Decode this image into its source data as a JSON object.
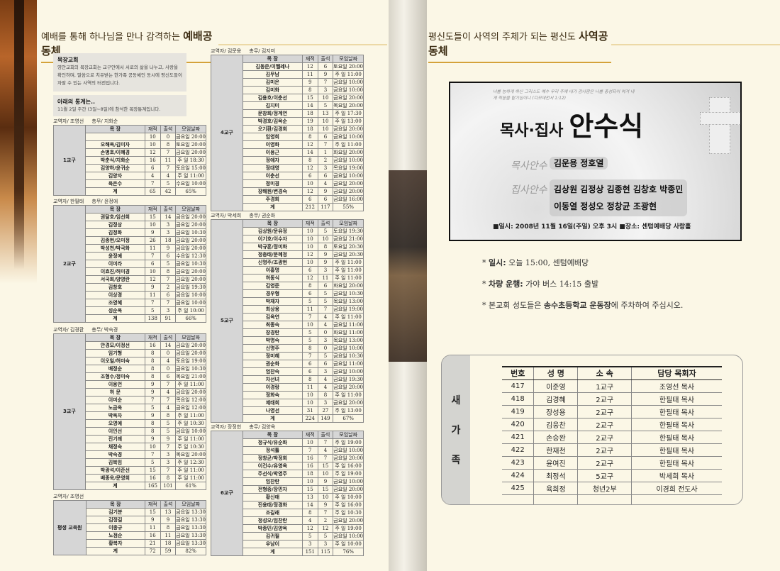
{
  "left_header": {
    "prefix": "예배를 통해 하나님을 만나 감격하는 ",
    "emph": "예배공동체"
  },
  "right_header": {
    "prefix": "평신도들이 사역의 주체가 되는 평신도 ",
    "emph": "사역공동체"
  },
  "intro": {
    "title": "목장교회",
    "text": "영안교회의 목장교회는 교구안에서 서로의 삶을 나누고, 사랑을 확인하며, 말씀으로 치유받는 한가족 공동체인 동시에 평신도들이 자랄 수 있는 사역의 터전입니다."
  },
  "stats_note": {
    "title": "아래의 통계는..",
    "text": "11월 2일 주간 (3일~8일)에 참석한 목장통계입니다."
  },
  "table_headers": [
    "목 장",
    "재적",
    "출석",
    "모임날짜"
  ],
  "districts": [
    {
      "leader": "교역자/ 조영선",
      "secretary": "총무/ 지화순",
      "group": "1교구",
      "rows": [
        [
          "",
          "10",
          "0",
          "금요일 20:00"
        ],
        [
          "오해옥/김미자",
          "10",
          "8",
          "토요일 20:00"
        ],
        [
          "손병호/이혜경",
          "12",
          "7",
          "금요일 20:00"
        ],
        [
          "박춘식/지화순",
          "16",
          "11",
          "주 일 18:30"
        ],
        [
          "김양하/윤귀순",
          "6",
          "7",
          "토요일 15:00"
        ],
        [
          "김양자",
          "4",
          "4",
          "주 일 11:00"
        ],
        [
          "육은수",
          "7",
          "5",
          "수요일 10:00"
        ]
      ],
      "total": [
        "계",
        "65",
        "42",
        "65%"
      ]
    },
    {
      "leader": "교역자/ 한필태",
      "secretary": "총무/ 윤정애",
      "group": "2교구",
      "rows": [
        [
          "권달호/임선희",
          "15",
          "14",
          "금요일 20:00"
        ],
        [
          "김정상",
          "10",
          "3",
          "금요일 20:00"
        ],
        [
          "김정화",
          "9",
          "3",
          "금요일 10:30"
        ],
        [
          "김종현/오미정",
          "26",
          "18",
          "금요일 20:00"
        ],
        [
          "박성천/박국화",
          "11",
          "9",
          "금요일 20:00"
        ],
        [
          "윤정애",
          "7",
          "6",
          "수요일 12:30"
        ],
        [
          "이미라",
          "6",
          "5",
          "금요일 10:30"
        ],
        [
          "이효진/허미경",
          "10",
          "8",
          "금요일 20:00"
        ],
        [
          "서국희/양영란",
          "12",
          "7",
          "금요일 20:00"
        ],
        [
          "김창호",
          "9",
          "2",
          "금요일 19:30"
        ],
        [
          "이상경",
          "11",
          "6",
          "금요일 10:00"
        ],
        [
          "조영혜",
          "7",
          "7",
          "금요일 10:00"
        ],
        [
          "성순옥",
          "5",
          "3",
          "주 일 10:00"
        ]
      ],
      "total": [
        "계",
        "138",
        "91",
        "66%"
      ]
    },
    {
      "leader": "교역자/ 김경환",
      "secretary": "총무/ 박숙경",
      "group": "3교구",
      "rows": [
        [
          "안경모/이정선",
          "16",
          "14",
          "금요일 20:00"
        ],
        [
          "임기형",
          "8",
          "0",
          "금요일 20:00"
        ],
        [
          "이오일/허미숙",
          "8",
          "4",
          "토요일 19:00"
        ],
        [
          "배정순",
          "8",
          "0",
          "금요일 10:30"
        ],
        [
          "조형수/정미숙",
          "8",
          "6",
          "목요일 21:00"
        ],
        [
          "이용언",
          "9",
          "7",
          "주 일 11:00"
        ],
        [
          "허 문",
          "9",
          "4",
          "금요일 20:00"
        ],
        [
          "이미순",
          "7",
          "7",
          "목요일 12:00"
        ],
        [
          "노금옥",
          "5",
          "4",
          "금요일 12:00"
        ],
        [
          "박옥자",
          "9",
          "8",
          "주 일 11:00"
        ],
        [
          "오영애",
          "8",
          "5",
          "주 일 10:30"
        ],
        [
          "이인선",
          "8",
          "5",
          "금요일 10:00"
        ],
        [
          "진기례",
          "9",
          "9",
          "주 일 11:00"
        ],
        [
          "채정숙",
          "10",
          "7",
          "주 일 10:30"
        ],
        [
          "박숙경",
          "7",
          "3",
          "목요일 20:00"
        ],
        [
          "김복임",
          "5",
          "3",
          "주 일 12:30"
        ],
        [
          "박광석/이준선",
          "15",
          "7",
          "주 일 11:00"
        ],
        [
          "배종욱/문영희",
          "16",
          "8",
          "주 일 11:00"
        ]
      ],
      "total": [
        "계",
        "165",
        "101",
        "61%"
      ]
    },
    {
      "leader": "교역자/ 조영선",
      "secretary": "",
      "group": "평생 교육원",
      "rows": [
        [
          "김기분",
          "15",
          "13",
          "금요일 13:30"
        ],
        [
          "김정길",
          "9",
          "9",
          "금요일 13:30"
        ],
        [
          "이종규",
          "11",
          "8",
          "금요일 13:30"
        ],
        [
          "노점순",
          "16",
          "11",
          "금요일 13:30"
        ],
        [
          "황복자",
          "21",
          "18",
          "금요일 13:30"
        ]
      ],
      "total": [
        "계",
        "72",
        "59",
        "82%"
      ]
    },
    {
      "leader": "교역자/ 김문용",
      "secretary": "총무/ 김지미",
      "group": "4교구",
      "rows": [
        [
          "김동준/이헬레나",
          "12",
          "6",
          "토요일 20:00"
        ],
        [
          "김무남",
          "11",
          "9",
          "주 일 11:00"
        ],
        [
          "김미은",
          "9",
          "7",
          "금요일 10:00"
        ],
        [
          "김미화",
          "8",
          "3",
          "금요일 10:00"
        ],
        [
          "김용호/이춘선",
          "15",
          "10",
          "금요일 20:00"
        ],
        [
          "김지미",
          "14",
          "5",
          "목요일 20:00"
        ],
        [
          "문창희/정계연",
          "18",
          "13",
          "주 일 17:30"
        ],
        [
          "박경호/김옥순",
          "19",
          "10",
          "주 일 13:00"
        ],
        [
          "오기환/김경희",
          "18",
          "10",
          "금요일 20:00"
        ],
        [
          "임영희",
          "8",
          "6",
          "금요일 10:00"
        ],
        [
          "이영화",
          "12",
          "7",
          "주 일 11:00"
        ],
        [
          "이용근",
          "14",
          "1",
          "화요일 20:00"
        ],
        [
          "정애자",
          "8",
          "2",
          "금요일 10:00"
        ],
        [
          "정대영",
          "12",
          "3",
          "목요일 19:00"
        ],
        [
          "이춘선",
          "6",
          "6",
          "금요일 10:00"
        ],
        [
          "정미경",
          "10",
          "4",
          "금요일 20:00"
        ],
        [
          "장해원/변경숙",
          "12",
          "9",
          "금요일 20:00"
        ],
        [
          "주경희",
          "6",
          "6",
          "금요일 16:00"
        ]
      ],
      "total": [
        "계",
        "212",
        "117",
        "55%"
      ]
    },
    {
      "leader": "교역자/ 박세희",
      "secretary": "총무/ 권순화",
      "group": "5교구",
      "rows": [
        [
          "김상원/문유정",
          "10",
          "5",
          "토요일 19:30"
        ],
        [
          "이기호/이수자",
          "10",
          "10",
          "금요일 21:00"
        ],
        [
          "박규훈/정미화",
          "10",
          "8",
          "토요일 20:30"
        ],
        [
          "정충태/문혜정",
          "12",
          "9",
          "금요일 20:30"
        ],
        [
          "신명주/조광현",
          "10",
          "9",
          "주 일 11:00"
        ],
        [
          "이홍명",
          "6",
          "3",
          "주 일 11:00"
        ],
        [
          "허동식",
          "12",
          "11",
          "주 일 11:00"
        ],
        [
          "김영준",
          "8",
          "6",
          "화요일 20:00"
        ],
        [
          "경우형",
          "6",
          "5",
          "금요일 10:30"
        ],
        [
          "박재자",
          "5",
          "5",
          "목요일 13:00"
        ],
        [
          "최상용",
          "11",
          "7",
          "금요일 19:00"
        ],
        [
          "김옥연",
          "7",
          "4",
          "주 일 11:00"
        ],
        [
          "최종숙",
          "10",
          "4",
          "금요일 11:00"
        ],
        [
          "장경란",
          "5",
          "0",
          "화요일 11:00"
        ],
        [
          "박명숙",
          "5",
          "3",
          "목요일 13:00"
        ],
        [
          "신명주",
          "8",
          "0",
          "금요일 10:00"
        ],
        [
          "정미혜",
          "7",
          "5",
          "금요일 10:30"
        ],
        [
          "권순화",
          "6",
          "6",
          "금요일 11:00"
        ],
        [
          "엄찬숙",
          "6",
          "3",
          "금요일 10:00"
        ],
        [
          "차선녀",
          "8",
          "4",
          "금요일 19:30"
        ],
        [
          "이경랑",
          "11",
          "4",
          "금요일 20:00"
        ],
        [
          "정화숙",
          "10",
          "8",
          "주 일 11:00"
        ],
        [
          "제태희",
          "10",
          "3",
          "금요일 20:00"
        ],
        [
          "나영선",
          "31",
          "27",
          "주 일 13:00"
        ]
      ],
      "total": [
        "계",
        "224",
        "149",
        "67%"
      ]
    },
    {
      "leader": "교역자/ 장정헌",
      "secretary": "총무/ 김양옥",
      "group": "6교구",
      "rows": [
        [
          "정규식/유순화",
          "10",
          "7",
          "주 일 19:00"
        ],
        [
          "정석톨",
          "7",
          "4",
          "금요일 10:00"
        ],
        [
          "정창균/박정희",
          "16",
          "7",
          "금요일 20:00"
        ],
        [
          "이건수/유영옥",
          "16",
          "15",
          "주 일 16:00"
        ],
        [
          "주선식/박영주",
          "18",
          "10",
          "주 일 19:00"
        ],
        [
          "임찬란",
          "10",
          "9",
          "금요일 10:00"
        ],
        [
          "전형중/장민자",
          "15",
          "15",
          "금요일 20:00"
        ],
        [
          "황신애",
          "13",
          "10",
          "주 일 10:00"
        ],
        [
          "진용태/정경화",
          "14",
          "9",
          "주 일 16:00"
        ],
        [
          "조길래",
          "8",
          "7",
          "주 일 10:30"
        ],
        [
          "정성오/임찬란",
          "4",
          "2",
          "금요일 20:00"
        ],
        [
          "박종민/김양옥",
          "12",
          "12",
          "주 일 19:00"
        ],
        [
          "김귀필",
          "5",
          "5",
          "금요일 10:00"
        ],
        [
          "우남이",
          "3",
          "3",
          "주 일 10:00"
        ]
      ],
      "total": [
        "계",
        "151",
        "115",
        "76%"
      ]
    }
  ],
  "banner": {
    "verse": "너를 능하게 하신 그리스도 예수 우리 주께 내가 감사함은 나를 충성되이 여겨 내게 직분을 맡기심이니 (디모데전서 1:12)",
    "title_small": "목사·집사",
    "title_big": "안수식",
    "pastor_tag": "목사안수",
    "pastor_names": "김운용 정호열",
    "deacon_tag": "집사안수",
    "deacon_names_1": "김상원 김정상 김종현 김창호 박종민",
    "deacon_names_2": "이동열 정성오 정창균 조광현",
    "footer": "■일시: 2008년 11월 16일(주일) 오후 3시   ■장소: 센텀예배당 사랑홀"
  },
  "notes": [
    {
      "label": "일시:",
      "text": " 오늘 15:00, 센텀예배당"
    },
    {
      "label": "차량 운행:",
      "text": " 가야 버스 14:15 출발"
    },
    {
      "pre": "본교회 성도들은 ",
      "label": "송수초등학교 운동장",
      "text": "에 주차하여 주십시오."
    }
  ],
  "new_family": {
    "side": [
      "새",
      "가",
      "족"
    ],
    "headers": [
      "번호",
      "성 명",
      "소 속",
      "담당 목회자"
    ],
    "rows": [
      [
        "417",
        "이준영",
        "1교구",
        "조영선 목사"
      ],
      [
        "418",
        "김경혜",
        "2교구",
        "한필태 목사"
      ],
      [
        "419",
        "장성용",
        "2교구",
        "한필태 목사"
      ],
      [
        "420",
        "김웅찬",
        "2교구",
        "한필태 목사"
      ],
      [
        "421",
        "손승완",
        "2교구",
        "한필태 목사"
      ],
      [
        "422",
        "한재천",
        "2교구",
        "한필태 목사"
      ],
      [
        "423",
        "윤여진",
        "2교구",
        "한필태 목사"
      ],
      [
        "424",
        "최정석",
        "5교구",
        "박세희 목사"
      ],
      [
        "425",
        "육희정",
        "청년2부",
        "이경희 전도사"
      ],
      [
        "",
        "",
        "",
        ""
      ]
    ]
  }
}
